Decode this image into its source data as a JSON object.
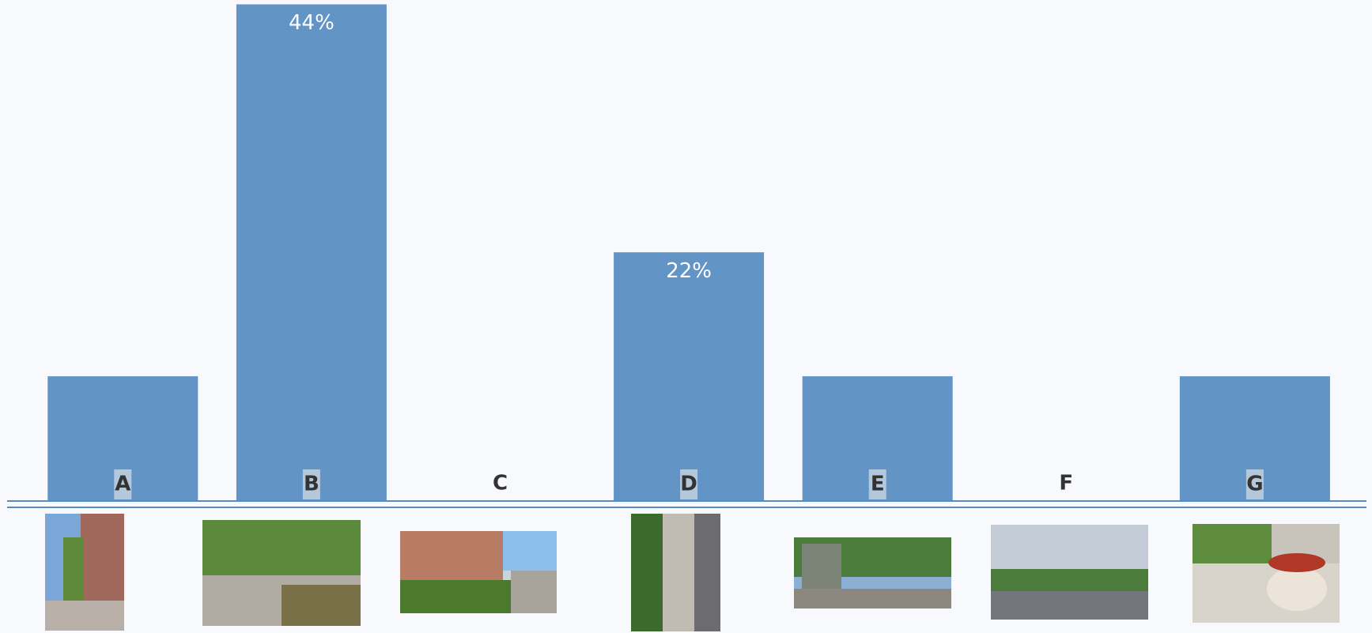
{
  "chart_data": {
    "type": "bar",
    "categories": [
      "A",
      "B",
      "C",
      "D",
      "E",
      "F",
      "G"
    ],
    "values": [
      11,
      44,
      0,
      22,
      11,
      0,
      11
    ],
    "value_labels": [
      null,
      "44%",
      null,
      "22%",
      null,
      null,
      null
    ],
    "color": "#6394c6",
    "ylim": [
      0,
      44
    ]
  }
}
